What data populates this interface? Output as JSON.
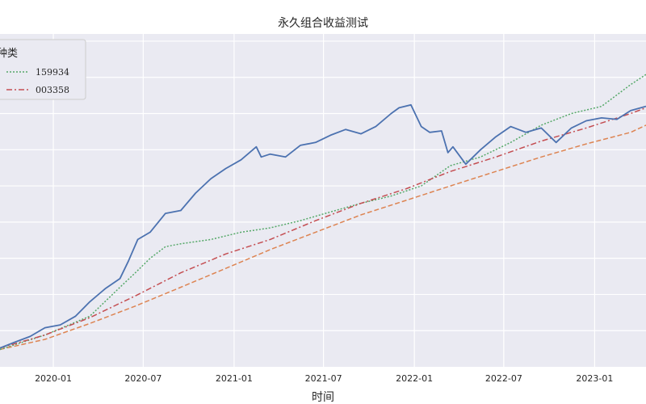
{
  "chart_data": {
    "type": "line",
    "title": "永久组合收益测试",
    "xlabel": "时间",
    "ylabel": "",
    "grid": true,
    "x_ticks": [
      "2020-01",
      "2020-07",
      "2021-01",
      "2021-07",
      "2022-01",
      "2022-07",
      "2023-01"
    ],
    "xlim": [
      "2019-09-15",
      "2023-04-15"
    ],
    "ylim": [
      0.975,
      1.205
    ],
    "legend": {
      "title": "种类",
      "placement": "top-left",
      "entries": [
        {
          "label": "159934",
          "color": "#55a868",
          "dash": "2,2"
        },
        {
          "label": "003358",
          "color": "#c44e52",
          "dash": "7,3,2,3"
        }
      ]
    },
    "series": [
      {
        "name": "",
        "color": "#4c72b0",
        "dash": "",
        "points": [
          [
            "2019-09-15",
            0.988
          ],
          [
            "2019-10-15",
            0.992
          ],
          [
            "2019-11-15",
            0.996
          ],
          [
            "2019-12-15",
            1.002
          ],
          [
            "2020-01-15",
            1.004
          ],
          [
            "2020-02-15",
            1.01
          ],
          [
            "2020-03-15",
            1.02
          ],
          [
            "2020-04-15",
            1.029
          ],
          [
            "2020-05-15",
            1.036
          ],
          [
            "2020-06-01",
            1.048
          ],
          [
            "2020-06-20",
            1.063
          ],
          [
            "2020-07-15",
            1.068
          ],
          [
            "2020-08-15",
            1.081
          ],
          [
            "2020-09-15",
            1.083
          ],
          [
            "2020-10-15",
            1.095
          ],
          [
            "2020-11-15",
            1.105
          ],
          [
            "2020-12-15",
            1.112
          ],
          [
            "2021-01-15",
            1.118
          ],
          [
            "2021-02-15",
            1.127
          ],
          [
            "2021-02-25",
            1.12
          ],
          [
            "2021-03-15",
            1.122
          ],
          [
            "2021-04-15",
            1.12
          ],
          [
            "2021-05-15",
            1.128
          ],
          [
            "2021-06-15",
            1.13
          ],
          [
            "2021-07-15",
            1.135
          ],
          [
            "2021-08-15",
            1.139
          ],
          [
            "2021-09-15",
            1.136
          ],
          [
            "2021-10-15",
            1.141
          ],
          [
            "2021-11-15",
            1.15
          ],
          [
            "2021-12-01",
            1.154
          ],
          [
            "2021-12-25",
            1.156
          ],
          [
            "2022-01-15",
            1.141
          ],
          [
            "2022-02-01",
            1.137
          ],
          [
            "2022-02-25",
            1.138
          ],
          [
            "2022-03-10",
            1.123
          ],
          [
            "2022-03-20",
            1.127
          ],
          [
            "2022-04-15",
            1.115
          ],
          [
            "2022-05-15",
            1.125
          ],
          [
            "2022-06-15",
            1.134
          ],
          [
            "2022-07-15",
            1.141
          ],
          [
            "2022-08-15",
            1.137
          ],
          [
            "2022-09-15",
            1.14
          ],
          [
            "2022-10-15",
            1.13
          ],
          [
            "2022-11-15",
            1.14
          ],
          [
            "2022-12-15",
            1.145
          ],
          [
            "2023-01-15",
            1.147
          ],
          [
            "2023-02-15",
            1.146
          ],
          [
            "2023-03-15",
            1.152
          ],
          [
            "2023-04-15",
            1.155
          ]
        ]
      },
      {
        "name": "159934",
        "color": "#55a868",
        "dash": "2,2",
        "points": [
          [
            "2019-09-15",
            0.987
          ],
          [
            "2019-12-15",
            0.997
          ],
          [
            "2020-03-15",
            1.01
          ],
          [
            "2020-05-15",
            1.03
          ],
          [
            "2020-06-15",
            1.04
          ],
          [
            "2020-07-15",
            1.05
          ],
          [
            "2020-08-15",
            1.058
          ],
          [
            "2020-09-15",
            1.06
          ],
          [
            "2020-11-15",
            1.063
          ],
          [
            "2021-01-15",
            1.068
          ],
          [
            "2021-03-15",
            1.071
          ],
          [
            "2021-05-15",
            1.076
          ],
          [
            "2021-07-15",
            1.082
          ],
          [
            "2021-09-15",
            1.088
          ],
          [
            "2021-11-15",
            1.093
          ],
          [
            "2022-01-15",
            1.1
          ],
          [
            "2022-03-15",
            1.114
          ],
          [
            "2022-05-15",
            1.12
          ],
          [
            "2022-07-15",
            1.13
          ],
          [
            "2022-09-15",
            1.142
          ],
          [
            "2022-11-15",
            1.15
          ],
          [
            "2023-01-15",
            1.155
          ],
          [
            "2023-03-15",
            1.17
          ],
          [
            "2023-04-15",
            1.177
          ]
        ]
      },
      {
        "name": "003358",
        "color": "#c44e52",
        "dash": "7,3,2,3",
        "points": [
          [
            "2019-09-15",
            0.988
          ],
          [
            "2019-12-15",
            0.997
          ],
          [
            "2020-03-15",
            1.009
          ],
          [
            "2020-06-15",
            1.024
          ],
          [
            "2020-09-15",
            1.04
          ],
          [
            "2020-12-15",
            1.053
          ],
          [
            "2021-03-15",
            1.063
          ],
          [
            "2021-06-15",
            1.076
          ],
          [
            "2021-09-15",
            1.088
          ],
          [
            "2021-12-15",
            1.098
          ],
          [
            "2022-03-15",
            1.11
          ],
          [
            "2022-06-15",
            1.12
          ],
          [
            "2022-09-15",
            1.131
          ],
          [
            "2022-12-15",
            1.14
          ],
          [
            "2023-03-15",
            1.15
          ],
          [
            "2023-04-15",
            1.154
          ]
        ]
      },
      {
        "name": "",
        "color": "#dd8452",
        "dash": "6,3",
        "points": [
          [
            "2019-09-15",
            0.987
          ],
          [
            "2019-12-15",
            0.994
          ],
          [
            "2020-03-15",
            1.005
          ],
          [
            "2020-06-15",
            1.017
          ],
          [
            "2020-09-15",
            1.03
          ],
          [
            "2020-12-15",
            1.043
          ],
          [
            "2021-03-15",
            1.056
          ],
          [
            "2021-06-15",
            1.068
          ],
          [
            "2021-09-15",
            1.08
          ],
          [
            "2021-12-15",
            1.09
          ],
          [
            "2022-03-15",
            1.1
          ],
          [
            "2022-06-15",
            1.11
          ],
          [
            "2022-09-15",
            1.12
          ],
          [
            "2022-12-15",
            1.129
          ],
          [
            "2023-03-15",
            1.137
          ],
          [
            "2023-04-15",
            1.142
          ]
        ]
      }
    ]
  }
}
